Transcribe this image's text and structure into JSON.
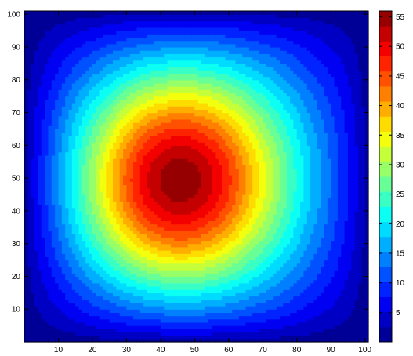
{
  "chart_data": {
    "type": "heatmap",
    "title": "",
    "xlabel": "",
    "ylabel": "",
    "xlim": [
      0,
      101
    ],
    "ylim": [
      0,
      101
    ],
    "x_ticks": [
      "10",
      "20",
      "30",
      "40",
      "50",
      "60",
      "70",
      "80",
      "90",
      "100"
    ],
    "y_ticks": [
      "10",
      "20",
      "30",
      "40",
      "50",
      "60",
      "70",
      "80",
      "90",
      "100"
    ],
    "colorbar": {
      "range": [
        0,
        56
      ],
      "levels": 22,
      "ticks": [
        "5",
        "10",
        "15",
        "20",
        "25",
        "30",
        "35",
        "40",
        "45",
        "50",
        "55"
      ]
    },
    "peak": {
      "x": 43,
      "y": 49,
      "value": 56
    },
    "colormap": "jet",
    "grid": false
  }
}
